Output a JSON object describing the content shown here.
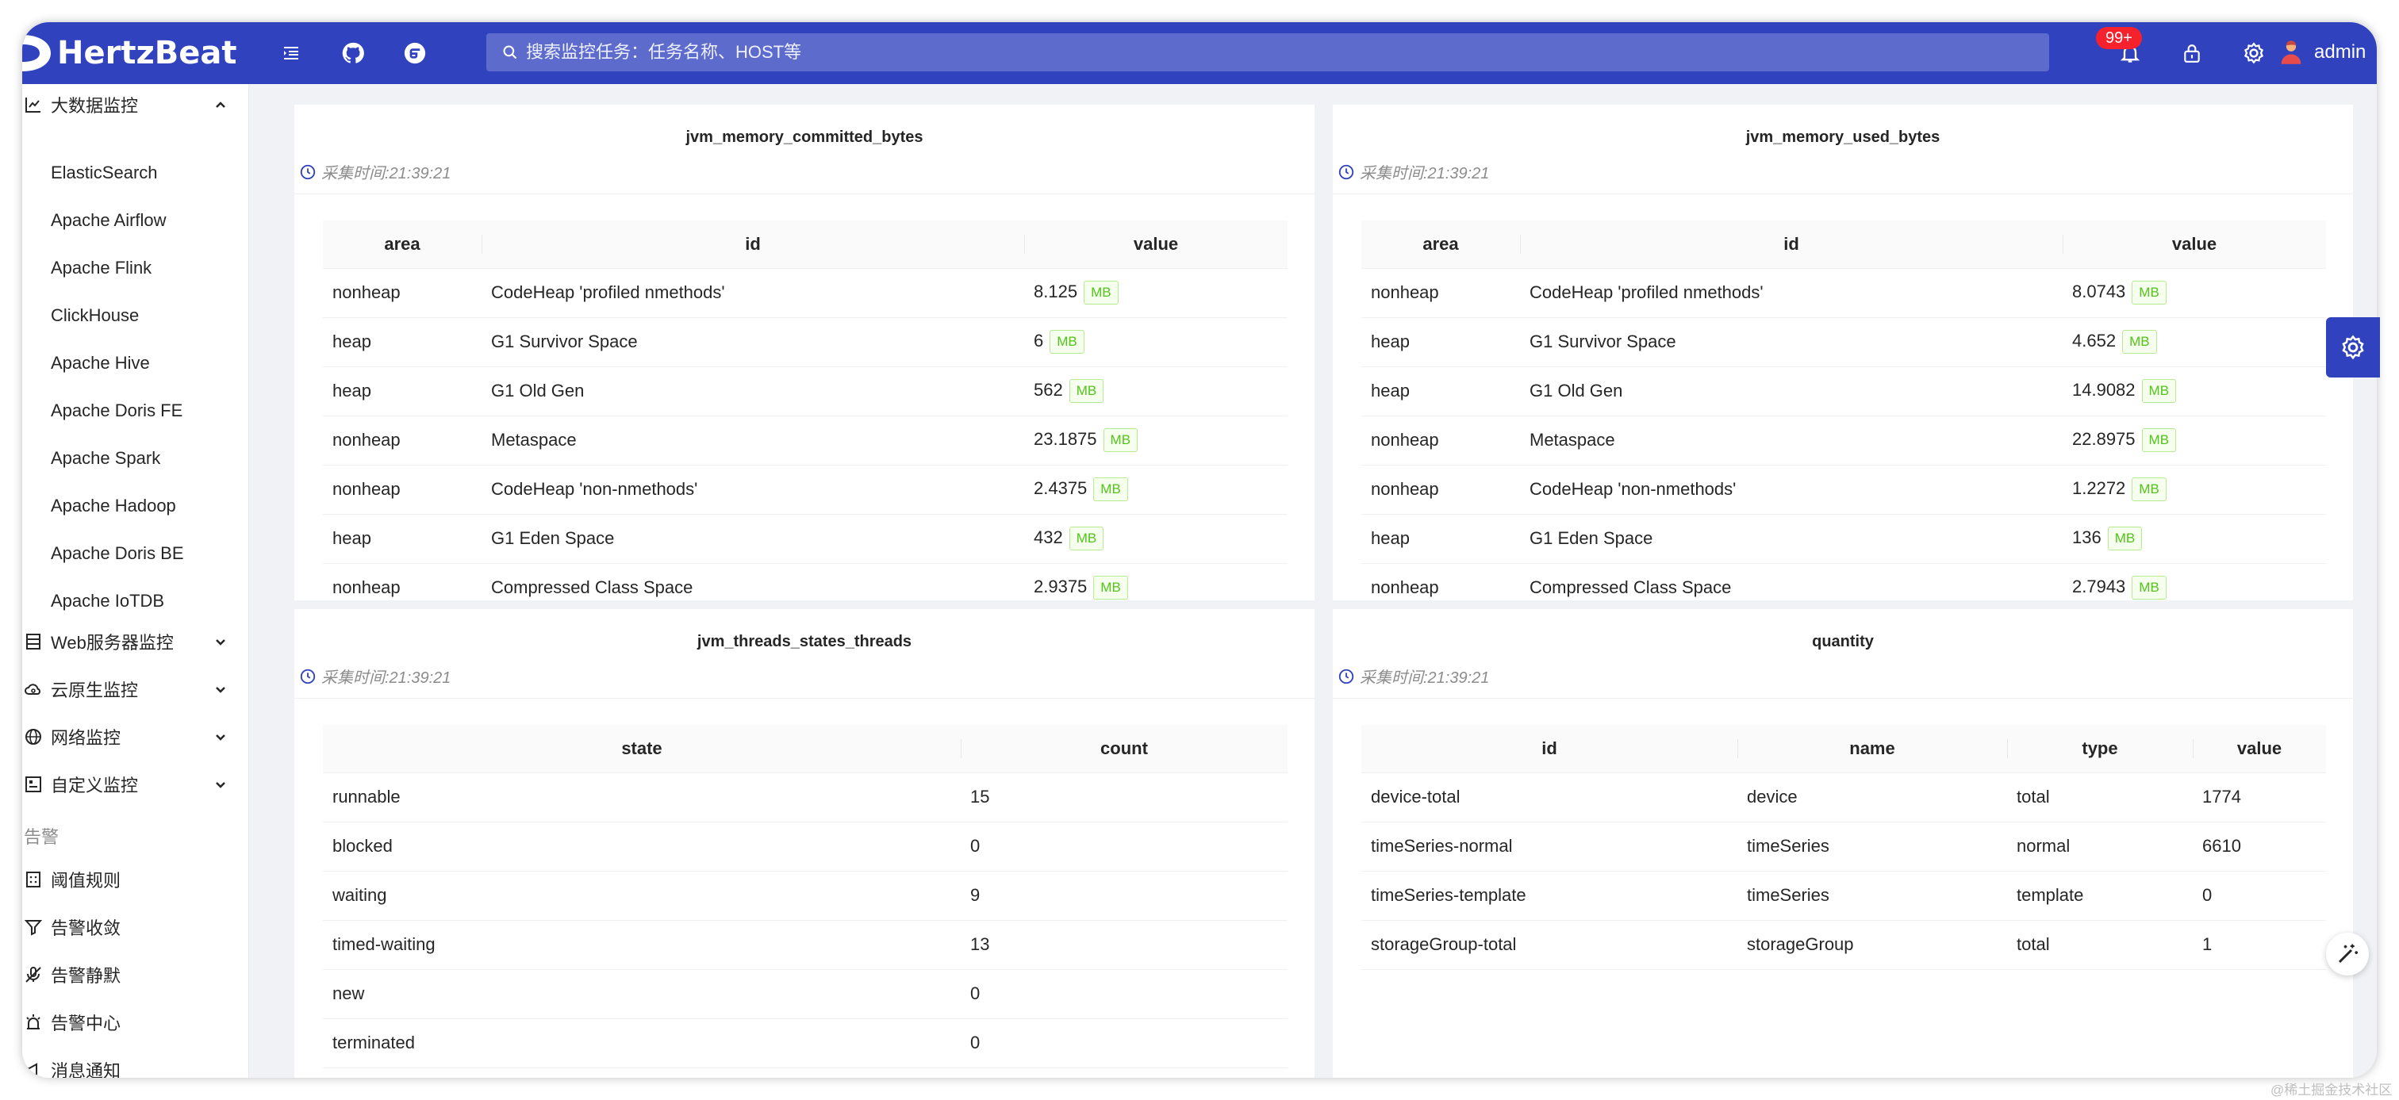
{
  "header": {
    "brand": "HertzBeat",
    "search_placeholder": "搜索监控任务：任务名称、HOST等",
    "notification_badge": "99+",
    "username": "admin"
  },
  "sidebar": {
    "open_group": "大数据监控",
    "items": [
      "ElasticSearch",
      "Apache Airflow",
      "Apache Flink",
      "ClickHouse",
      "Apache Hive",
      "Apache Doris FE",
      "Apache Spark",
      "Apache Hadoop",
      "Apache Doris BE",
      "Apache IoTDB"
    ],
    "groups": [
      "Web服务器监控",
      "云原生监控",
      "网络监控",
      "自定义监控"
    ],
    "section": "告警",
    "alert_items": [
      "阈值规则",
      "告警收敛",
      "告警静默",
      "告警中心",
      "消息通知"
    ]
  },
  "cards": {
    "committed": {
      "title": "jvm_memory_committed_bytes",
      "time": "采集时间:21:39:21",
      "headers": [
        "area",
        "id",
        "value"
      ],
      "unit": "MB",
      "rows": [
        [
          "nonheap",
          "CodeHeap 'profiled nmethods'",
          "8.125"
        ],
        [
          "heap",
          "G1 Survivor Space",
          "6"
        ],
        [
          "heap",
          "G1 Old Gen",
          "562"
        ],
        [
          "nonheap",
          "Metaspace",
          "23.1875"
        ],
        [
          "nonheap",
          "CodeHeap 'non-nmethods'",
          "2.4375"
        ],
        [
          "heap",
          "G1 Eden Space",
          "432"
        ],
        [
          "nonheap",
          "Compressed Class Space",
          "2.9375"
        ]
      ]
    },
    "used": {
      "title": "jvm_memory_used_bytes",
      "time": "采集时间:21:39:21",
      "headers": [
        "area",
        "id",
        "value"
      ],
      "unit": "MB",
      "rows": [
        [
          "nonheap",
          "CodeHeap 'profiled nmethods'",
          "8.0743"
        ],
        [
          "heap",
          "G1 Survivor Space",
          "4.652"
        ],
        [
          "heap",
          "G1 Old Gen",
          "14.9082"
        ],
        [
          "nonheap",
          "Metaspace",
          "22.8975"
        ],
        [
          "nonheap",
          "CodeHeap 'non-nmethods'",
          "1.2272"
        ],
        [
          "heap",
          "G1 Eden Space",
          "136"
        ],
        [
          "nonheap",
          "Compressed Class Space",
          "2.7943"
        ]
      ]
    },
    "threads": {
      "title": "jvm_threads_states_threads",
      "time": "采集时间:21:39:21",
      "headers": [
        "state",
        "count"
      ],
      "rows": [
        [
          "runnable",
          "15"
        ],
        [
          "blocked",
          "0"
        ],
        [
          "waiting",
          "9"
        ],
        [
          "timed-waiting",
          "13"
        ],
        [
          "new",
          "0"
        ],
        [
          "terminated",
          "0"
        ]
      ]
    },
    "quantity": {
      "title": "quantity",
      "time": "采集时间:21:39:21",
      "headers": [
        "id",
        "name",
        "type",
        "value"
      ],
      "rows": [
        [
          "device-total",
          "device",
          "total",
          "1774"
        ],
        [
          "timeSeries-normal",
          "timeSeries",
          "normal",
          "6610"
        ],
        [
          "timeSeries-template",
          "timeSeries",
          "template",
          "0"
        ],
        [
          "storageGroup-total",
          "storageGroup",
          "total",
          "1"
        ]
      ]
    }
  },
  "watermark": "@稀土掘金技术社区"
}
